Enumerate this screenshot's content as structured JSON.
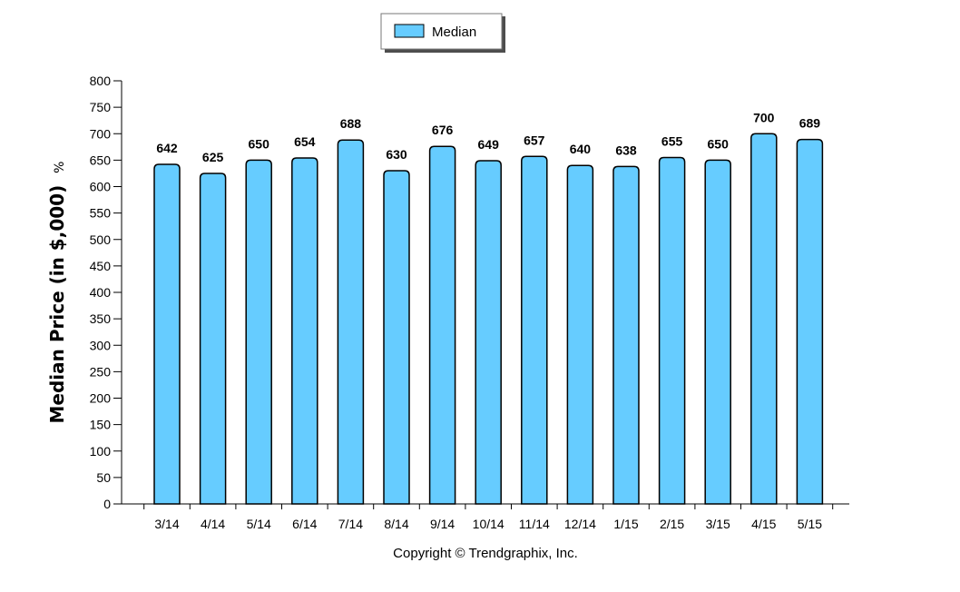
{
  "chart_data": {
    "type": "bar",
    "categories": [
      "3/14",
      "4/14",
      "5/14",
      "6/14",
      "7/14",
      "8/14",
      "9/14",
      "10/14",
      "11/14",
      "12/14",
      "1/15",
      "2/15",
      "3/15",
      "4/15",
      "5/15"
    ],
    "series": [
      {
        "name": "Median",
        "values": [
          642,
          625,
          650,
          654,
          688,
          630,
          676,
          649,
          657,
          640,
          638,
          655,
          650,
          700,
          689
        ]
      }
    ],
    "ylabel": "Median Price (in $,000)",
    "ylabel_suffix": "%",
    "ylim": [
      0,
      800
    ],
    "yticks": [
      0,
      50,
      100,
      150,
      200,
      250,
      300,
      350,
      400,
      450,
      500,
      550,
      600,
      650,
      700,
      750,
      800
    ],
    "legend_position": "top-center",
    "grid": false,
    "bar_color": "#66ccff",
    "bar_edge_color": "#000000"
  },
  "footer": {
    "copyright": "Copyright © Trendgraphix, Inc."
  }
}
